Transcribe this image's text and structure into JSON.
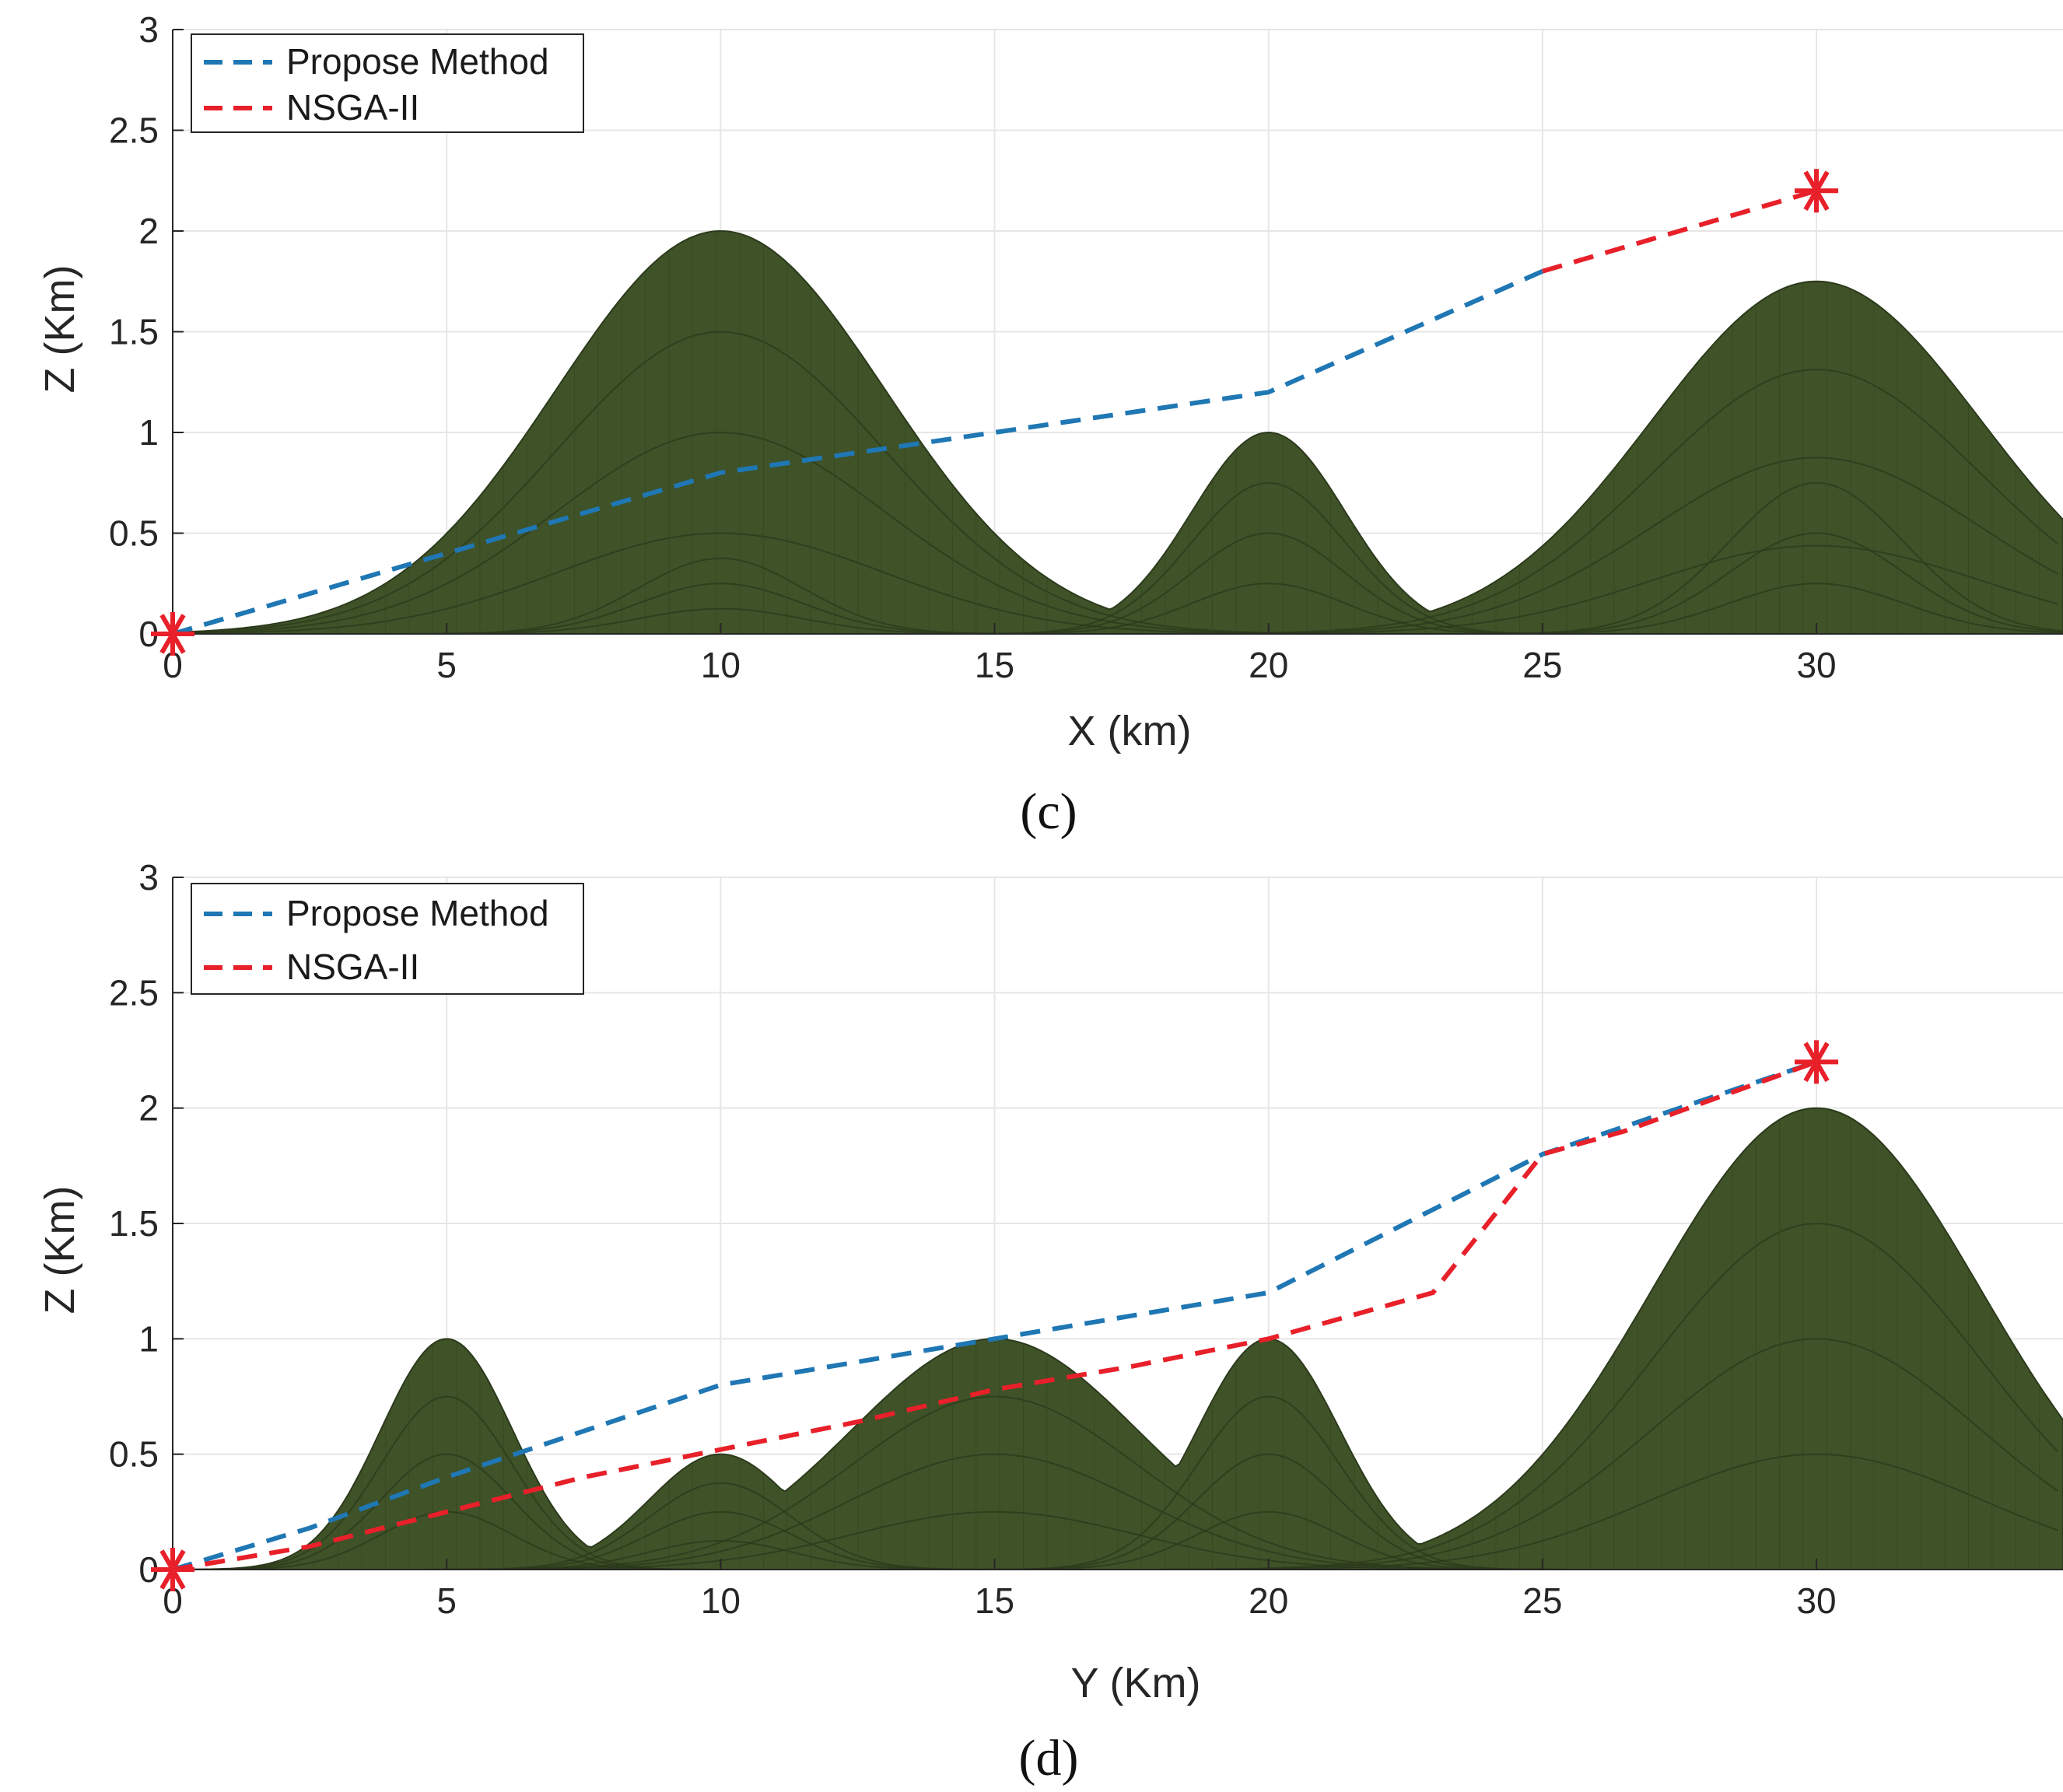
{
  "chart_data": [
    {
      "type": "line",
      "panel_caption": "(c)",
      "xlabel": "X (km)",
      "ylabel": "Z (Km)",
      "xlim": [
        0,
        34.5
      ],
      "ylim": [
        0,
        3
      ],
      "xticks": [
        0,
        5,
        10,
        15,
        20,
        25,
        30
      ],
      "yticks": [
        0,
        0.5,
        1,
        1.5,
        2,
        2.5,
        3
      ],
      "xtick_labels": [
        "0",
        "5",
        "10",
        "15",
        "20",
        "25",
        "30"
      ],
      "ytick_labels": [
        "0",
        "0.5",
        "1",
        "1.5",
        "2",
        "2.5",
        "3"
      ],
      "grid": true,
      "legend_position": "top-left",
      "terrain": {
        "peaks": [
          {
            "center": 10,
            "height": 2.0,
            "width": 3.0
          },
          {
            "center": 20,
            "height": 1.0,
            "width": 1.4
          },
          {
            "center": 30,
            "height": 1.75,
            "width": 3.0
          },
          {
            "center": 10,
            "height": 0.5,
            "width": 1.5
          },
          {
            "center": 30,
            "height": 1.0,
            "width": 1.6
          }
        ],
        "color": "#3f5228"
      },
      "series": [
        {
          "name": "Propose Method",
          "color": "#1f77b4",
          "x": [
            0,
            5,
            10,
            15,
            20,
            25
          ],
          "y": [
            0,
            0.4,
            0.8,
            1.0,
            1.2,
            1.8
          ]
        },
        {
          "name": "NSGA-II",
          "color": "#e8202a",
          "x": [
            25,
            30
          ],
          "y": [
            1.8,
            2.2
          ]
        }
      ],
      "markers": [
        {
          "name": "start",
          "x": 0,
          "y": 0,
          "color": "#e8202a"
        },
        {
          "name": "goal",
          "x": 30,
          "y": 2.2,
          "color": "#e8202a"
        }
      ]
    },
    {
      "type": "line",
      "panel_caption": "(d)",
      "xlabel": "Y (Km)",
      "ylabel": "Z (Km)",
      "xlim": [
        0,
        34.5
      ],
      "ylim": [
        0,
        3
      ],
      "xticks": [
        0,
        5,
        10,
        15,
        20,
        25,
        30
      ],
      "yticks": [
        0,
        0.5,
        1,
        1.5,
        2,
        2.5,
        3
      ],
      "xtick_labels": [
        "0",
        "5",
        "10",
        "15",
        "20",
        "25",
        "30"
      ],
      "ytick_labels": [
        "0",
        "0.5",
        "1",
        "1.5",
        "2",
        "2.5",
        "3"
      ],
      "grid": true,
      "legend_position": "top-left",
      "terrain": {
        "peaks": [
          {
            "center": 5,
            "height": 1.0,
            "width": 1.2
          },
          {
            "center": 10,
            "height": 0.5,
            "width": 1.3
          },
          {
            "center": 15,
            "height": 1.0,
            "width": 2.6
          },
          {
            "center": 20,
            "height": 1.0,
            "width": 1.3
          },
          {
            "center": 30,
            "height": 2.0,
            "width": 3.0
          }
        ],
        "color": "#3f5228"
      },
      "series": [
        {
          "name": "Propose Method",
          "color": "#1f77b4",
          "x": [
            0,
            2.5,
            5,
            7.5,
            10,
            12.5,
            15,
            17.5,
            20,
            22.5,
            25,
            27.5,
            30
          ],
          "y": [
            0,
            0.18,
            0.4,
            0.6,
            0.8,
            0.9,
            1.0,
            1.1,
            1.2,
            1.5,
            1.8,
            2.0,
            2.2
          ]
        },
        {
          "name": "NSGA-II",
          "color": "#e8202a",
          "x": [
            0,
            2.5,
            5,
            7.5,
            10,
            12.5,
            15,
            17.5,
            20,
            23,
            25,
            26.5,
            30
          ],
          "y": [
            0,
            0.1,
            0.25,
            0.4,
            0.52,
            0.64,
            0.78,
            0.88,
            1.0,
            1.2,
            1.8,
            1.9,
            2.2
          ]
        }
      ],
      "markers": [
        {
          "name": "start",
          "x": 0,
          "y": 0,
          "color": "#e8202a"
        },
        {
          "name": "goal",
          "x": 30,
          "y": 2.2,
          "color": "#e8202a"
        }
      ]
    }
  ]
}
